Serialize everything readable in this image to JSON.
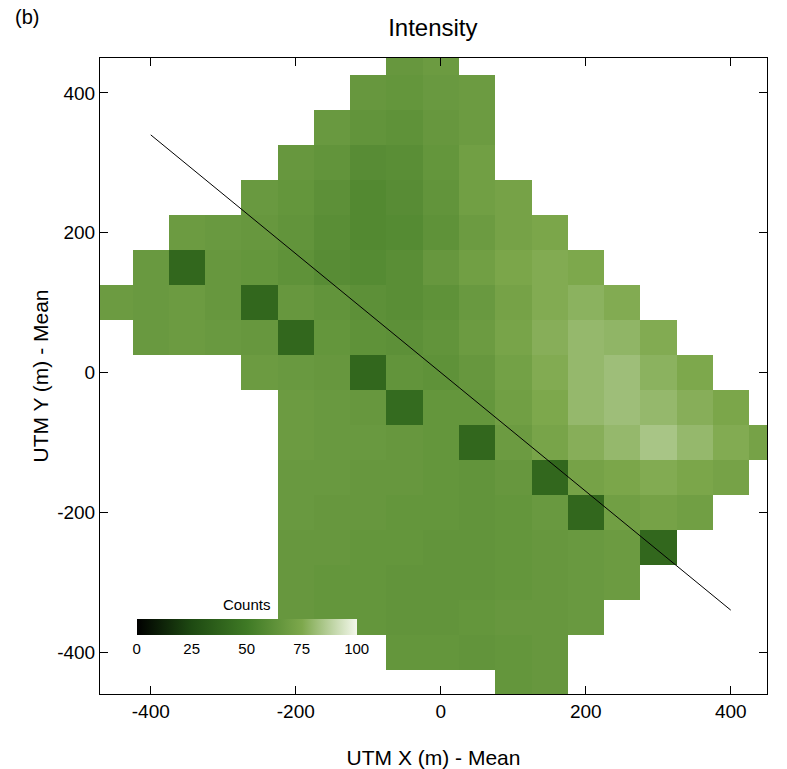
{
  "chart_data": {
    "type": "heatmap",
    "title": "Intensity",
    "panel_label": "(b)",
    "x_label": "UTM X (m) - Mean",
    "y_label": "UTM Y (m) - Mean",
    "xlim": [
      -470,
      450
    ],
    "ylim": [
      -460,
      450
    ],
    "xticks": [
      -400,
      -200,
      0,
      200,
      400
    ],
    "yticks": [
      -400,
      -200,
      0,
      200,
      400
    ],
    "x": [
      -450,
      -400,
      -350,
      -300,
      -250,
      -200,
      -150,
      -100,
      -50,
      0,
      50,
      100,
      150,
      200,
      250,
      300,
      350,
      400,
      450
    ],
    "y": [
      450,
      400,
      350,
      300,
      250,
      200,
      150,
      100,
      50,
      0,
      -50,
      -100,
      -150,
      -200,
      -250,
      -300,
      -350,
      -400,
      -450
    ],
    "z": [
      [
        null,
        null,
        null,
        null,
        null,
        null,
        null,
        null,
        66,
        68,
        null,
        null,
        null,
        null,
        null,
        null,
        null,
        null,
        null
      ],
      [
        null,
        null,
        null,
        null,
        null,
        null,
        null,
        66,
        65,
        67,
        68,
        null,
        null,
        null,
        null,
        null,
        null,
        null,
        null
      ],
      [
        null,
        null,
        null,
        null,
        null,
        null,
        67,
        64,
        63,
        66,
        68,
        null,
        null,
        null,
        null,
        null,
        null,
        null,
        null
      ],
      [
        null,
        null,
        null,
        null,
        null,
        66,
        64,
        60,
        61,
        65,
        70,
        null,
        null,
        null,
        null,
        null,
        null,
        null,
        null
      ],
      [
        null,
        null,
        null,
        null,
        67,
        65,
        62,
        58,
        60,
        64,
        70,
        72,
        null,
        null,
        null,
        null,
        null,
        null,
        null
      ],
      [
        null,
        null,
        68,
        67,
        66,
        64,
        61,
        58,
        59,
        63,
        68,
        72,
        74,
        null,
        null,
        null,
        null,
        null,
        null
      ],
      [
        null,
        67,
        40,
        66,
        65,
        63,
        60,
        59,
        61,
        66,
        70,
        74,
        76,
        75,
        null,
        null,
        null,
        null,
        null
      ],
      [
        68,
        67,
        68,
        66,
        40,
        66,
        64,
        62,
        61,
        63,
        67,
        72,
        76,
        78,
        76,
        null,
        null,
        null,
        null
      ],
      [
        null,
        67,
        68,
        67,
        66,
        40,
        65,
        63,
        62,
        64,
        68,
        73,
        77,
        80,
        79,
        76,
        null,
        null,
        null
      ],
      [
        null,
        null,
        null,
        null,
        68,
        67,
        66,
        40,
        64,
        63,
        66,
        71,
        76,
        80,
        82,
        78,
        75,
        null,
        null
      ],
      [
        null,
        null,
        null,
        null,
        null,
        68,
        67,
        66,
        42,
        65,
        65,
        70,
        75,
        80,
        82,
        80,
        77,
        74,
        null
      ],
      [
        null,
        null,
        null,
        null,
        null,
        68,
        67,
        67,
        66,
        65,
        40,
        68,
        73,
        77,
        80,
        84,
        80,
        76,
        72
      ],
      [
        null,
        null,
        null,
        null,
        null,
        67,
        67,
        66,
        66,
        65,
        64,
        66,
        40,
        72,
        74,
        76,
        74,
        72,
        null
      ],
      [
        null,
        null,
        null,
        null,
        null,
        67,
        66,
        66,
        65,
        65,
        64,
        65,
        67,
        40,
        70,
        72,
        70,
        null,
        null
      ],
      [
        null,
        null,
        null,
        null,
        null,
        66,
        66,
        65,
        65,
        64,
        64,
        65,
        66,
        67,
        68,
        40,
        null,
        null,
        null
      ],
      [
        null,
        null,
        null,
        null,
        null,
        66,
        65,
        65,
        64,
        64,
        64,
        65,
        66,
        67,
        68,
        null,
        null,
        null,
        null
      ],
      [
        null,
        null,
        null,
        null,
        null,
        66,
        65,
        65,
        64,
        64,
        65,
        66,
        66,
        67,
        null,
        null,
        null,
        null,
        null
      ],
      [
        null,
        null,
        null,
        null,
        null,
        null,
        null,
        null,
        65,
        65,
        64,
        65,
        66,
        null,
        null,
        null,
        null,
        null,
        null
      ],
      [
        null,
        null,
        null,
        null,
        null,
        null,
        null,
        null,
        null,
        null,
        null,
        65,
        66,
        null,
        null,
        null,
        null,
        null,
        null
      ]
    ],
    "colors": [
      "#000000",
      "#1e4a12",
      "#3f7a25",
      "#7da84c",
      "#f4f8ec"
    ],
    "colorbar": {
      "title": "Counts",
      "range": [
        0,
        100
      ],
      "ticks": [
        0,
        25,
        50,
        75,
        100
      ]
    },
    "line": {
      "x": [
        -400,
        400
      ],
      "y": [
        340,
        -340
      ],
      "color": "#000000"
    }
  }
}
